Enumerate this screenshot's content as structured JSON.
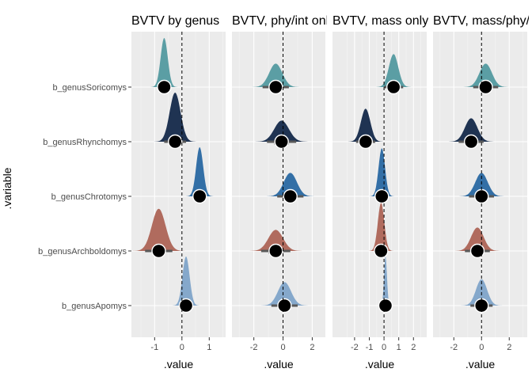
{
  "chart_data": {
    "type": "density-interval",
    "y_axis_title": ".variable",
    "x_axis_title": ".value",
    "categories": [
      "b_genusSoricomys",
      "b_genusRhynchomys",
      "b_genusChrotomys",
      "b_genusArchboldomys",
      "b_genusApomys"
    ],
    "category_colors": {
      "b_genusSoricomys": "#5b9ea4",
      "b_genusRhynchomys": "#1f3352",
      "b_genusChrotomys": "#336fa6",
      "b_genusArchboldomys": "#b06b5e",
      "b_genusApomys": "#85a8cb"
    },
    "facets": [
      {
        "title": "BVTV by genus",
        "xlim": [
          -1.85,
          1.6
        ],
        "x_ticks": [
          -1,
          0,
          1
        ],
        "x_tick_labels": [
          "-1",
          "0",
          "1"
        ],
        "series": [
          {
            "category": "b_genusSoricomys",
            "median": -0.65,
            "sd": 0.13,
            "ci66": [
              -0.78,
              -0.52
            ],
            "ci95": [
              -0.9,
              -0.4
            ]
          },
          {
            "category": "b_genusRhynchomys",
            "median": -0.25,
            "sd": 0.2,
            "ci66": [
              -0.45,
              -0.05
            ],
            "ci95": [
              -0.65,
              0.15
            ]
          },
          {
            "category": "b_genusChrotomys",
            "median": 0.65,
            "sd": 0.13,
            "ci66": [
              0.52,
              0.78
            ],
            "ci95": [
              0.4,
              0.9
            ]
          },
          {
            "category": "b_genusArchboldomys",
            "median": -0.85,
            "sd": 0.25,
            "ci66": [
              -1.1,
              -0.6
            ],
            "ci95": [
              -1.35,
              -0.35
            ]
          },
          {
            "category": "b_genusApomys",
            "median": 0.15,
            "sd": 0.13,
            "ci66": [
              0.02,
              0.28
            ],
            "ci95": [
              -0.1,
              0.4
            ]
          }
        ]
      },
      {
        "title": "BVTV, phy/int only",
        "xlim": [
          -3.5,
          2.9
        ],
        "x_ticks": [
          -2,
          0,
          2
        ],
        "x_tick_labels": [
          "-2",
          "0",
          "2"
        ],
        "series": [
          {
            "category": "b_genusSoricomys",
            "median": -0.5,
            "sd": 0.45,
            "ci66": [
              -0.95,
              -0.05
            ],
            "ci95": [
              -1.4,
              0.4
            ]
          },
          {
            "category": "b_genusRhynchomys",
            "median": -0.1,
            "sd": 0.5,
            "ci66": [
              -0.6,
              0.4
            ],
            "ci95": [
              -1.1,
              0.9
            ]
          },
          {
            "category": "b_genusChrotomys",
            "median": 0.5,
            "sd": 0.45,
            "ci66": [
              0.05,
              0.95
            ],
            "ci95": [
              -0.4,
              1.4
            ]
          },
          {
            "category": "b_genusArchboldomys",
            "median": -0.5,
            "sd": 0.5,
            "ci66": [
              -1.0,
              0.0
            ],
            "ci95": [
              -1.5,
              0.5
            ]
          },
          {
            "category": "b_genusApomys",
            "median": 0.1,
            "sd": 0.45,
            "ci66": [
              -0.35,
              0.55
            ],
            "ci95": [
              -0.8,
              1.0
            ]
          }
        ]
      },
      {
        "title": "BVTV, mass only",
        "xlim": [
          -3.5,
          2.9
        ],
        "x_ticks": [
          -2,
          -1,
          0,
          1,
          2
        ],
        "x_tick_labels": [
          "-2",
          "-1",
          "0",
          "1",
          "2"
        ],
        "series": [
          {
            "category": "b_genusSoricomys",
            "median": 0.65,
            "sd": 0.32,
            "ci66": [
              0.33,
              0.97
            ],
            "ci95": [
              0.0,
              1.3
            ]
          },
          {
            "category": "b_genusRhynchomys",
            "median": -1.25,
            "sd": 0.32,
            "ci66": [
              -1.57,
              -0.93
            ],
            "ci95": [
              -1.9,
              -0.6
            ]
          },
          {
            "category": "b_genusChrotomys",
            "median": -0.15,
            "sd": 0.22,
            "ci66": [
              -0.37,
              0.07
            ],
            "ci95": [
              -0.6,
              0.3
            ]
          },
          {
            "category": "b_genusArchboldomys",
            "median": -0.2,
            "sd": 0.22,
            "ci66": [
              -0.42,
              0.02
            ],
            "ci95": [
              -0.65,
              0.25
            ]
          },
          {
            "category": "b_genusApomys",
            "median": 0.1,
            "sd": 0.1,
            "ci66": [
              0.0,
              0.2
            ],
            "ci95": [
              -0.1,
              0.3
            ]
          }
        ]
      },
      {
        "title": "BVTV, mass/phy/int",
        "xlim": [
          -3.5,
          3.3
        ],
        "x_ticks": [
          -2,
          0,
          2
        ],
        "x_tick_labels": [
          "-2",
          "0",
          "2"
        ],
        "series": [
          {
            "category": "b_genusSoricomys",
            "median": 0.3,
            "sd": 0.45,
            "ci66": [
              -0.15,
              0.75
            ],
            "ci95": [
              -0.6,
              1.2
            ]
          },
          {
            "category": "b_genusRhynchomys",
            "median": -0.75,
            "sd": 0.45,
            "ci66": [
              -1.2,
              -0.3
            ],
            "ci95": [
              -1.65,
              0.15
            ]
          },
          {
            "category": "b_genusChrotomys",
            "median": 0.0,
            "sd": 0.45,
            "ci66": [
              -0.45,
              0.45
            ],
            "ci95": [
              -0.9,
              0.9
            ]
          },
          {
            "category": "b_genusArchboldomys",
            "median": -0.3,
            "sd": 0.45,
            "ci66": [
              -0.75,
              0.15
            ],
            "ci95": [
              -1.2,
              0.6
            ]
          },
          {
            "category": "b_genusApomys",
            "median": 0.0,
            "sd": 0.4,
            "ci66": [
              -0.4,
              0.4
            ],
            "ci95": [
              -0.8,
              0.8
            ]
          }
        ]
      }
    ],
    "reference_line": 0,
    "grid": true,
    "colors": {
      "panel_background": "#ebebeb",
      "grid_major": "#ffffff",
      "tick_text": "#4d4d4d",
      "point": "#000000",
      "interval": "#595959"
    }
  }
}
